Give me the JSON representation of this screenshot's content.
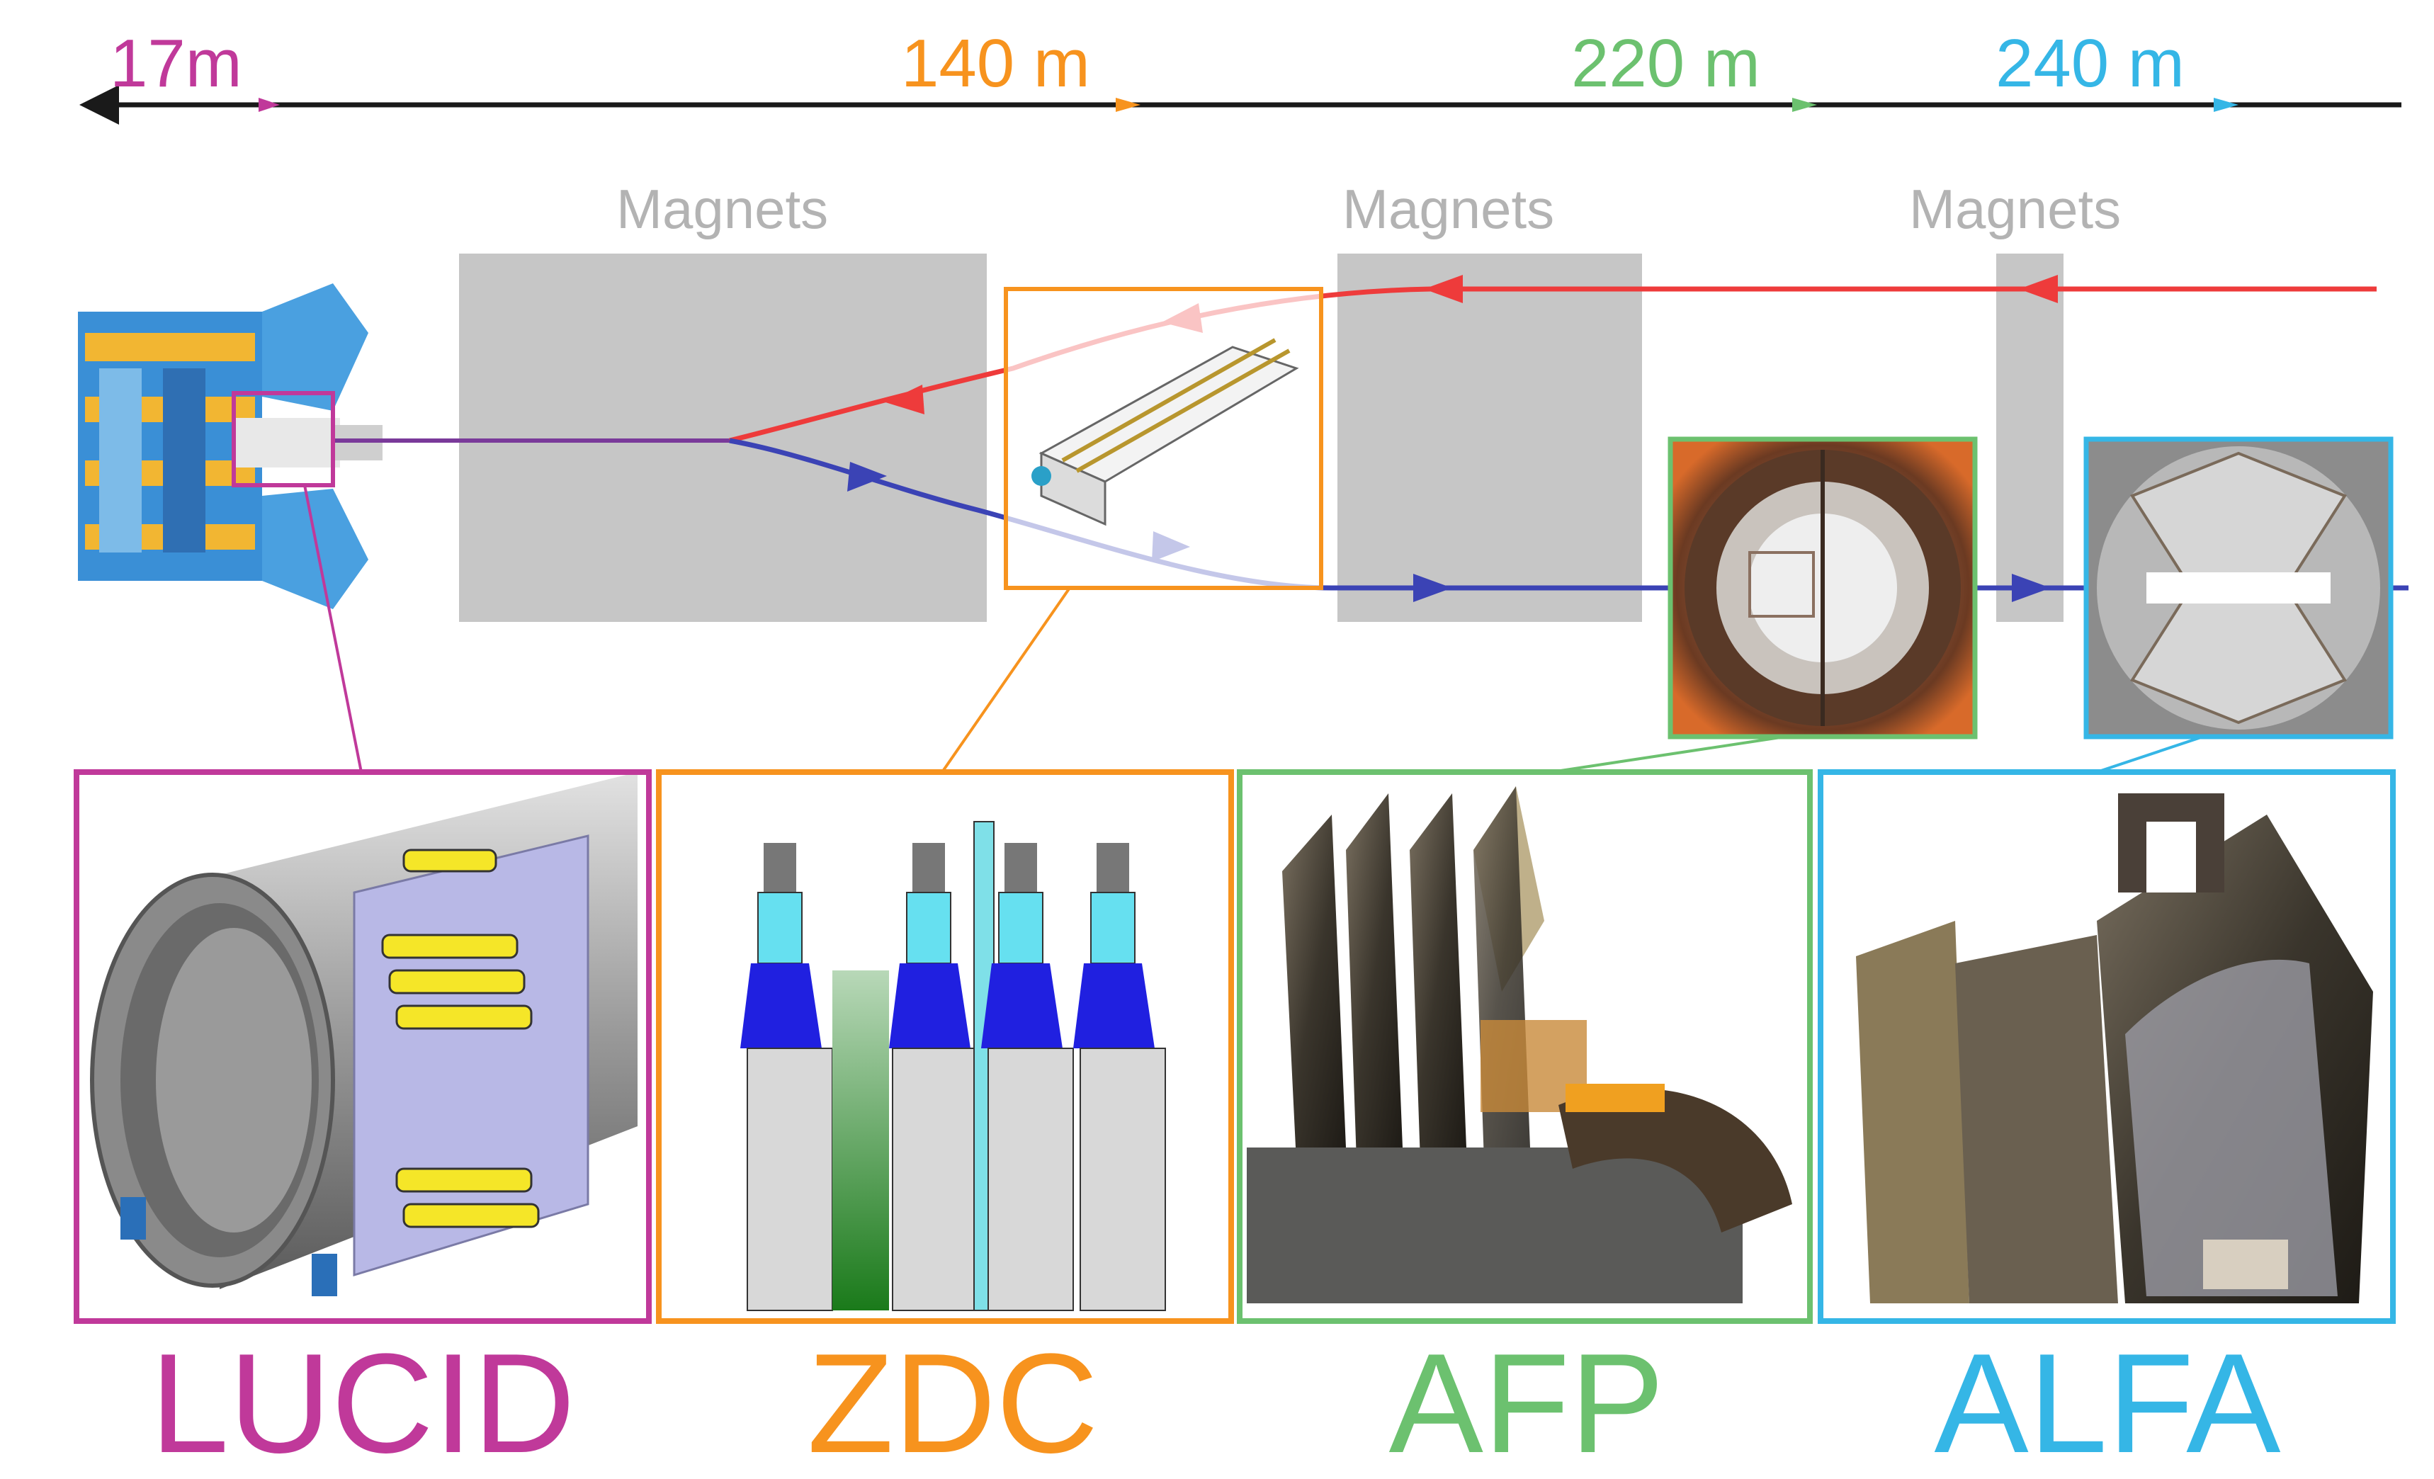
{
  "distances": [
    {
      "label": "17m",
      "color": "#c0399a"
    },
    {
      "label": "140 m",
      "color": "#f7931e"
    },
    {
      "label": "220 m",
      "color": "#6cc16f"
    },
    {
      "label": "240 m",
      "color": "#35b6e6"
    }
  ],
  "magnets": [
    "Magnets",
    "Magnets",
    "Magnets"
  ],
  "detectors": [
    {
      "name": "LUCID",
      "color": "#c0399a"
    },
    {
      "name": "ZDC",
      "color": "#f7931e"
    },
    {
      "name": "AFP",
      "color": "#6cc16f"
    },
    {
      "name": "ALFA",
      "color": "#35b6e6"
    }
  ],
  "beams": {
    "beam1_color": "#ee3b3b",
    "beam2_color": "#3b43b5",
    "axis_color": "#1a1a1a"
  },
  "magnet_color": "#c6c6c6"
}
